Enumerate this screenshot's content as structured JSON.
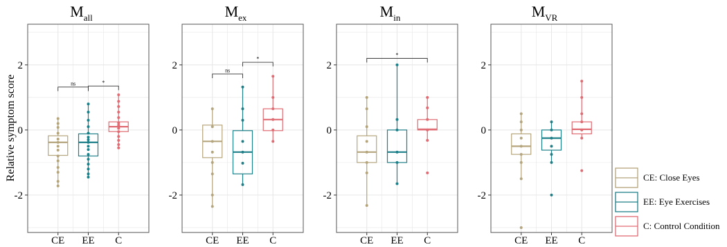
{
  "chart_data": [
    {
      "type": "boxplot",
      "title": {
        "main": "M",
        "sub": "all"
      },
      "ylabel": "Relative symptom score",
      "ylim": [
        -3.15,
        3.25
      ],
      "yticks": [
        2,
        0,
        -2
      ],
      "categories": [
        "CE",
        "EE",
        "C"
      ],
      "boxes": [
        {
          "q1": -0.78,
          "median": -0.38,
          "q3": -0.18,
          "whisker_low": -1.72,
          "whisker_high": 0.35,
          "points": [
            0.35,
            0.2,
            0.08,
            -0.1,
            -0.28,
            -0.38,
            -0.5,
            -0.62,
            -0.8,
            -0.95,
            -1.15,
            -1.3,
            -1.58,
            -1.72
          ]
        },
        {
          "q1": -0.8,
          "median": -0.38,
          "q3": -0.12,
          "whisker_low": -1.45,
          "whisker_high": 0.8,
          "points": [
            0.8,
            0.55,
            0.3,
            0.1,
            -0.1,
            -0.22,
            -0.3,
            -0.38,
            -0.5,
            -0.6,
            -0.75,
            -0.9,
            -1.05,
            -1.2,
            -1.35,
            -1.45
          ]
        },
        {
          "q1": -0.05,
          "median": 0.1,
          "q3": 0.25,
          "whisker_low": -0.55,
          "whisker_high": 1.08,
          "points": [
            1.08,
            0.88,
            0.72,
            0.55,
            0.38,
            0.22,
            0.15,
            0.05,
            -0.05,
            -0.2,
            -0.32,
            -0.45,
            -0.55
          ]
        }
      ],
      "significance": [
        {
          "from": "CE",
          "to": "EE",
          "label": "ns",
          "y": 1.32
        },
        {
          "from": "EE",
          "to": "C",
          "label": "*",
          "y": 1.35
        }
      ]
    },
    {
      "type": "boxplot",
      "title": {
        "main": "M",
        "sub": "ex"
      },
      "ylim": [
        -3.15,
        3.25
      ],
      "yticks": [
        2,
        0,
        -2
      ],
      "categories": [
        "CE",
        "EE",
        "C"
      ],
      "boxes": [
        {
          "q1": -0.85,
          "median": -0.35,
          "q3": 0.15,
          "whisker_low": -2.35,
          "whisker_high": 0.65,
          "points": [
            0.65,
            0.1,
            -0.35,
            -0.68,
            -1.0,
            -1.35,
            -2.0,
            -2.35
          ]
        },
        {
          "q1": -1.35,
          "median": -0.68,
          "q3": -0.02,
          "whisker_low": -1.68,
          "whisker_high": 1.32,
          "points": [
            1.32,
            0.65,
            0.3,
            -0.35,
            -0.68,
            -1.02,
            -1.68
          ]
        },
        {
          "q1": -0.02,
          "median": 0.32,
          "q3": 0.65,
          "whisker_low": -0.35,
          "whisker_high": 1.65,
          "points": [
            1.65,
            1.0,
            0.65,
            0.32,
            0.0,
            -0.35
          ]
        }
      ],
      "significance": [
        {
          "from": "CE",
          "to": "EE",
          "label": "ns",
          "y": 1.72
        },
        {
          "from": "EE",
          "to": "C",
          "label": "*",
          "y": 2.08
        }
      ]
    },
    {
      "type": "boxplot",
      "title": {
        "main": "M",
        "sub": "in"
      },
      "ylim": [
        -3.15,
        3.25
      ],
      "yticks": [
        2,
        0,
        -2
      ],
      "categories": [
        "CE",
        "EE",
        "C"
      ],
      "boxes": [
        {
          "q1": -1.0,
          "median": -0.68,
          "q3": -0.18,
          "whisker_low": -2.32,
          "whisker_high": 1.0,
          "points": [
            1.0,
            0.65,
            0.1,
            -0.35,
            -0.68,
            -1.0,
            -1.32,
            -2.32
          ]
        },
        {
          "q1": -1.0,
          "median": -0.68,
          "q3": 0.0,
          "whisker_low": -1.65,
          "whisker_high": 2.0,
          "points": [
            2.0,
            0.32,
            0.0,
            -0.68,
            -1.0,
            -1.65
          ]
        },
        {
          "q1": 0.0,
          "median": 0.02,
          "q3": 0.32,
          "whisker_low": -0.32,
          "whisker_high": 1.0,
          "points": [
            1.0,
            0.68,
            0.32,
            0.0,
            -0.32,
            -1.32
          ]
        }
      ],
      "significance": [
        {
          "from": "CE",
          "to": "C",
          "label": "*",
          "y": 2.2
        }
      ]
    },
    {
      "type": "boxplot",
      "title": {
        "main": "M",
        "sub": "VR"
      },
      "ylim": [
        -3.15,
        3.25
      ],
      "yticks": [
        2,
        0,
        -2
      ],
      "categories": [
        "CE",
        "EE",
        "C"
      ],
      "boxes": [
        {
          "q1": -0.75,
          "median": -0.5,
          "q3": -0.12,
          "whisker_low": -1.5,
          "whisker_high": 0.5,
          "points": [
            0.5,
            0.25,
            0.0,
            -0.25,
            -0.5,
            -0.75,
            -1.0,
            -1.5,
            -3.0
          ]
        },
        {
          "q1": -0.62,
          "median": -0.25,
          "q3": 0.0,
          "whisker_low": -1.0,
          "whisker_high": 0.25,
          "points": [
            0.25,
            0.0,
            -0.25,
            -0.5,
            -0.75,
            -1.0,
            -2.0
          ]
        },
        {
          "q1": -0.12,
          "median": 0.02,
          "q3": 0.25,
          "whisker_low": -0.25,
          "whisker_high": 1.5,
          "points": [
            1.5,
            1.0,
            0.5,
            0.25,
            0.0,
            -0.25,
            -1.25
          ]
        }
      ],
      "significance": []
    }
  ],
  "legend": {
    "placement": "right",
    "items": [
      {
        "label": "CE: Close Eyes",
        "color": "#b5a57c"
      },
      {
        "label": "EE: Eye Exercises",
        "color": "#1d7f88"
      },
      {
        "label": "C: Control Condition",
        "color": "#e06b72"
      }
    ]
  },
  "colors": {
    "CE": "#b5a57c",
    "EE": "#1d7f88",
    "C": "#e06b72",
    "grid": "#e6e6e6",
    "frame": "#555555"
  }
}
